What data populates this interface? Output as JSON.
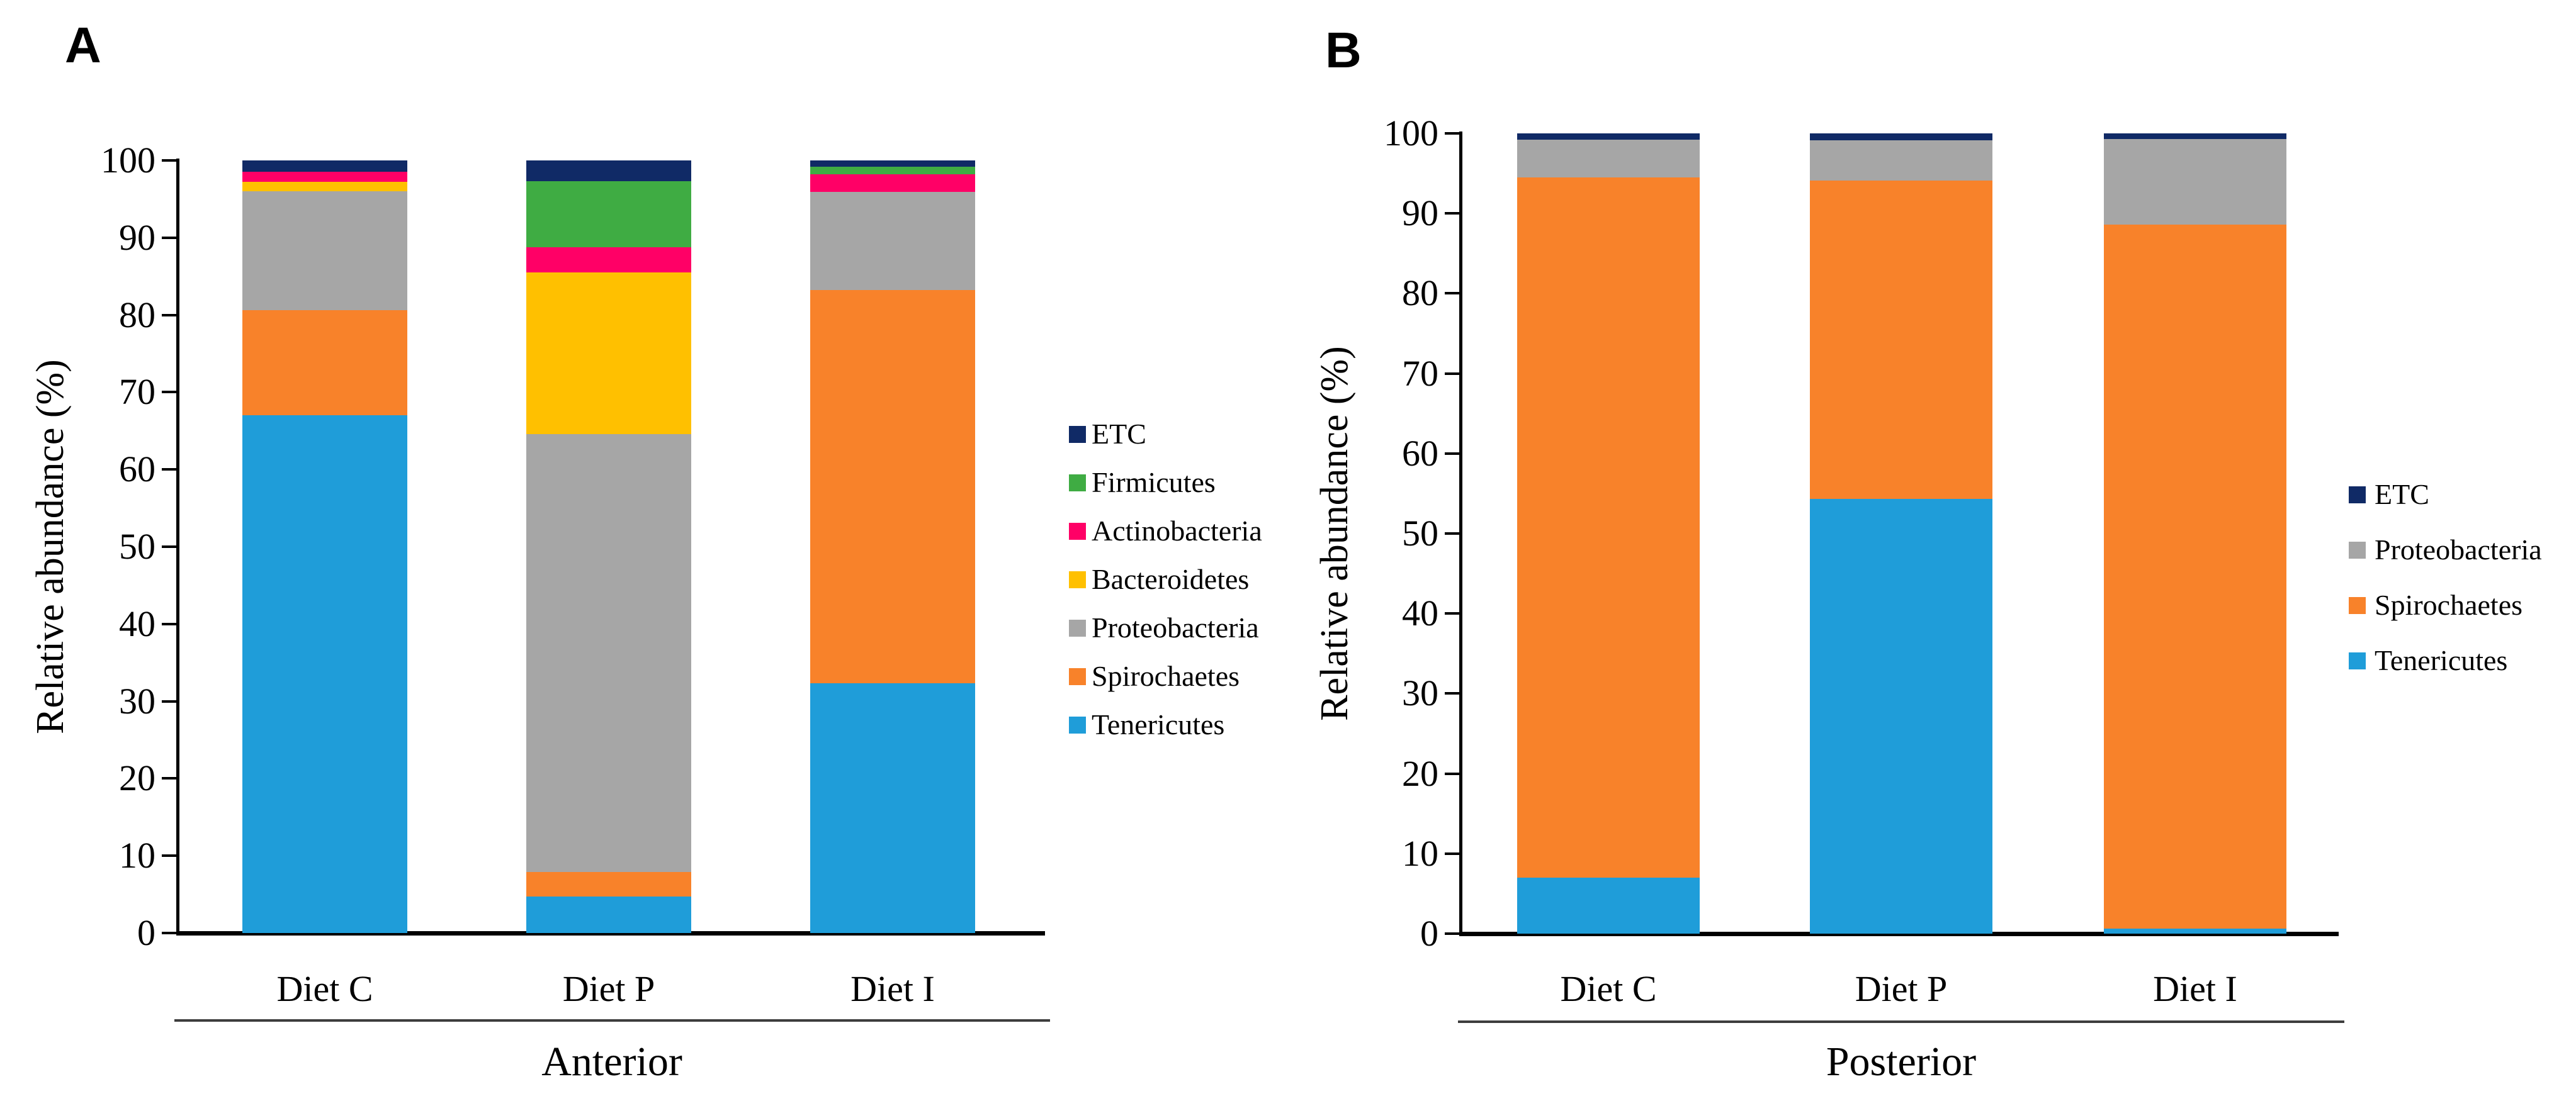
{
  "figure": {
    "background": "#ffffff",
    "axis_color": "#000000",
    "group_line_color": "#3d3d3d",
    "colors": {
      "ETC": "#102a66",
      "Firmicutes": "#3fac43",
      "Actinobacteria": "#ff0066",
      "Bacteroidetes": "#ffc000",
      "Proteobacteria": "#a6a6a6",
      "Spirochaetes": "#f8822a",
      "Tenericutes": "#1f9dd9"
    }
  },
  "chart_data": [
    {
      "type": "bar",
      "stacked": true,
      "panel_label": "A",
      "group_label": "Anterior",
      "ylabel": "Relative abundance (%)",
      "ylim": [
        0,
        100
      ],
      "yticks": [
        0,
        10,
        20,
        30,
        40,
        50,
        60,
        70,
        80,
        90,
        100
      ],
      "grid": false,
      "legend_position": "right",
      "categories": [
        "Diet C",
        "Diet P",
        "Diet I"
      ],
      "series": [
        {
          "name": "Tenericutes",
          "values": [
            67.0,
            4.7,
            32.3
          ]
        },
        {
          "name": "Spirochaetes",
          "values": [
            13.6,
            3.2,
            50.9
          ]
        },
        {
          "name": "Proteobacteria",
          "values": [
            15.4,
            56.7,
            12.7
          ]
        },
        {
          "name": "Bacteroidetes",
          "values": [
            1.2,
            20.9,
            0.0
          ]
        },
        {
          "name": "Actinobacteria",
          "values": [
            1.3,
            3.3,
            2.3
          ]
        },
        {
          "name": "Firmicutes",
          "values": [
            0.0,
            8.5,
            1.0
          ]
        },
        {
          "name": "ETC",
          "values": [
            1.5,
            2.7,
            0.8
          ]
        }
      ],
      "legend": [
        "ETC",
        "Firmicutes",
        "Actinobacteria",
        "Bacteroidetes",
        "Proteobacteria",
        "Spirochaetes",
        "Tenericutes"
      ]
    },
    {
      "type": "bar",
      "stacked": true,
      "panel_label": "B",
      "group_label": "Posterior",
      "ylabel": "Relative abundance (%)",
      "ylim": [
        0,
        100
      ],
      "yticks": [
        0,
        10,
        20,
        30,
        40,
        50,
        60,
        70,
        80,
        90,
        100
      ],
      "grid": false,
      "legend_position": "right",
      "categories": [
        "Diet C",
        "Diet P",
        "Diet I"
      ],
      "series": [
        {
          "name": "Tenericutes",
          "values": [
            7.0,
            54.3,
            0.6
          ]
        },
        {
          "name": "Spirochaetes",
          "values": [
            87.5,
            39.8,
            88.0
          ]
        },
        {
          "name": "Proteobacteria",
          "values": [
            4.7,
            5.0,
            10.7
          ]
        },
        {
          "name": "ETC",
          "values": [
            0.8,
            0.9,
            0.7
          ]
        }
      ],
      "legend": [
        "ETC",
        "Proteobacteria",
        "Spirochaetes",
        "Tenericutes"
      ]
    }
  ]
}
